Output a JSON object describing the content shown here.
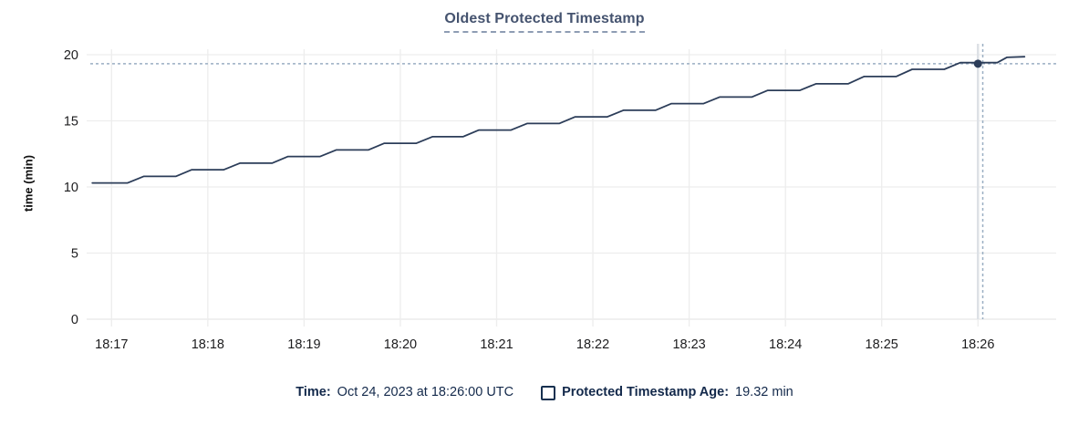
{
  "header": {
    "title": "Oldest Protected Timestamp"
  },
  "chart_data": {
    "type": "line",
    "title": "Oldest Protected Timestamp",
    "xlabel": "",
    "ylabel": "time (min)",
    "ylim": [
      0,
      20.4
    ],
    "grid": true,
    "legend_position": "bottom",
    "yticks": [
      {
        "value": 0,
        "label": "0"
      },
      {
        "value": 5,
        "label": "5"
      },
      {
        "value": 10,
        "label": "10"
      },
      {
        "value": 15,
        "label": "15"
      },
      {
        "value": 20,
        "label": "20"
      }
    ],
    "xticks": [
      {
        "t_seconds": 0,
        "label": "18:17"
      },
      {
        "t_seconds": 60,
        "label": "18:18"
      },
      {
        "t_seconds": 120,
        "label": "18:19"
      },
      {
        "t_seconds": 180,
        "label": "18:20"
      },
      {
        "t_seconds": 240,
        "label": "18:21"
      },
      {
        "t_seconds": 300,
        "label": "18:22"
      },
      {
        "t_seconds": 360,
        "label": "18:23"
      },
      {
        "t_seconds": 420,
        "label": "18:24"
      },
      {
        "t_seconds": 480,
        "label": "18:25"
      },
      {
        "t_seconds": 540,
        "label": "18:26"
      }
    ],
    "series": [
      {
        "name": "Protected Timestamp Age",
        "unit": "min",
        "color": "#2c3d59",
        "points": [
          [
            -12,
            10.3
          ],
          [
            10,
            10.3
          ],
          [
            20,
            10.8
          ],
          [
            40,
            10.8
          ],
          [
            50,
            11.3
          ],
          [
            70,
            11.3
          ],
          [
            80,
            11.8
          ],
          [
            100,
            11.8
          ],
          [
            110,
            12.3
          ],
          [
            130,
            12.3
          ],
          [
            140,
            12.8
          ],
          [
            160,
            12.8
          ],
          [
            170,
            13.3
          ],
          [
            190,
            13.3
          ],
          [
            200,
            13.8
          ],
          [
            219,
            13.8
          ],
          [
            229,
            14.3
          ],
          [
            249,
            14.3
          ],
          [
            259,
            14.8
          ],
          [
            279,
            14.8
          ],
          [
            289,
            15.3
          ],
          [
            309,
            15.3
          ],
          [
            319,
            15.8
          ],
          [
            339,
            15.8
          ],
          [
            349,
            16.3
          ],
          [
            369,
            16.3
          ],
          [
            379,
            16.8
          ],
          [
            399,
            16.8
          ],
          [
            409,
            17.3
          ],
          [
            429,
            17.3
          ],
          [
            439,
            17.8
          ],
          [
            459,
            17.8
          ],
          [
            469,
            18.35
          ],
          [
            489,
            18.35
          ],
          [
            499,
            18.9
          ],
          [
            519,
            18.9
          ],
          [
            529,
            19.4
          ],
          [
            552,
            19.4
          ],
          [
            558,
            19.8
          ],
          [
            569,
            19.85
          ]
        ]
      }
    ],
    "hover": {
      "t_seconds": 540,
      "mouse_t_seconds": 543,
      "time_label": "18:26:00",
      "value": 19.32,
      "value_label": "19.32 min",
      "crosshair_color": "#9bafc3",
      "focus_line_color": "#dde1e6"
    },
    "grid_color": "#ededed",
    "zero_line_color": "#e6e6e6",
    "tick_text_color": "#1c1c1e"
  },
  "footer": {
    "time_label": "Time:",
    "time_value": "Oct 24, 2023 at 18:26:00 UTC",
    "legend_label": "Protected Timestamp Age:",
    "legend_value": "19.32 min",
    "text_color": "#13294b"
  }
}
